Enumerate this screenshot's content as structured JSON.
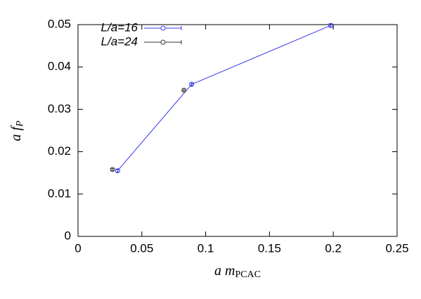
{
  "chart_data": {
    "type": "scatter",
    "xlabel": {
      "main": "a m",
      "sub": "PCAC"
    },
    "ylabel": {
      "main": "a f",
      "sub": "P"
    },
    "xlim": [
      0,
      0.25
    ],
    "xticks": [
      0,
      0.05,
      0.1,
      0.15,
      0.2,
      0.25
    ],
    "ylim": [
      0,
      0.05
    ],
    "yticks": [
      0,
      0.01,
      0.02,
      0.03,
      0.04,
      0.05
    ],
    "grid": false,
    "legend": "top-left",
    "series": [
      {
        "name": "L/a=16",
        "color": "#3a3aee",
        "line": true,
        "x": [
          0.031,
          0.089,
          0.198
        ],
        "values": [
          0.0155,
          0.0359,
          0.0498
        ],
        "errors": [
          0.0003,
          0.0003,
          0.0004
        ]
      },
      {
        "name": "L/a=24",
        "color": "#333333",
        "line": false,
        "x": [
          0.027,
          0.083
        ],
        "values": [
          0.0158,
          0.0345
        ],
        "errors": [
          0.0002,
          0.0002
        ]
      }
    ]
  }
}
